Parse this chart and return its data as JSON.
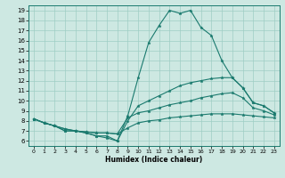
{
  "title": "",
  "xlabel": "Humidex (Indice chaleur)",
  "bg_color": "#cde8e2",
  "line_color": "#1a7a6e",
  "grid_color": "#9ecdc4",
  "xlim": [
    -0.5,
    23.5
  ],
  "ylim": [
    5.5,
    19.5
  ],
  "xticks": [
    0,
    1,
    2,
    3,
    4,
    5,
    6,
    7,
    8,
    9,
    10,
    11,
    12,
    13,
    14,
    15,
    16,
    17,
    18,
    19,
    20,
    21,
    22,
    23
  ],
  "yticks": [
    6,
    7,
    8,
    9,
    10,
    11,
    12,
    13,
    14,
    15,
    16,
    17,
    18,
    19
  ],
  "line1_y": [
    8.2,
    7.8,
    7.5,
    7.0,
    7.0,
    6.8,
    6.5,
    6.5,
    6.0,
    8.5,
    12.3,
    15.8,
    17.5,
    19.0,
    18.7,
    19.0,
    17.3,
    16.5,
    14.0,
    12.3,
    11.3,
    9.8,
    9.5,
    8.8
  ],
  "line2_y": [
    8.2,
    7.8,
    7.5,
    7.0,
    7.0,
    6.8,
    6.5,
    6.3,
    6.0,
    8.0,
    9.5,
    10.0,
    10.5,
    11.0,
    11.5,
    11.8,
    12.0,
    12.2,
    12.3,
    12.3,
    11.3,
    9.8,
    9.5,
    8.8
  ],
  "line3_y": [
    8.2,
    7.8,
    7.5,
    7.2,
    7.0,
    6.9,
    6.8,
    6.8,
    6.7,
    8.3,
    8.8,
    9.0,
    9.3,
    9.6,
    9.8,
    10.0,
    10.3,
    10.5,
    10.7,
    10.8,
    10.3,
    9.3,
    9.0,
    8.6
  ],
  "line4_y": [
    8.2,
    7.8,
    7.5,
    7.2,
    7.0,
    6.9,
    6.8,
    6.8,
    6.7,
    7.3,
    7.8,
    8.0,
    8.1,
    8.3,
    8.4,
    8.5,
    8.6,
    8.7,
    8.7,
    8.7,
    8.6,
    8.5,
    8.4,
    8.3
  ]
}
